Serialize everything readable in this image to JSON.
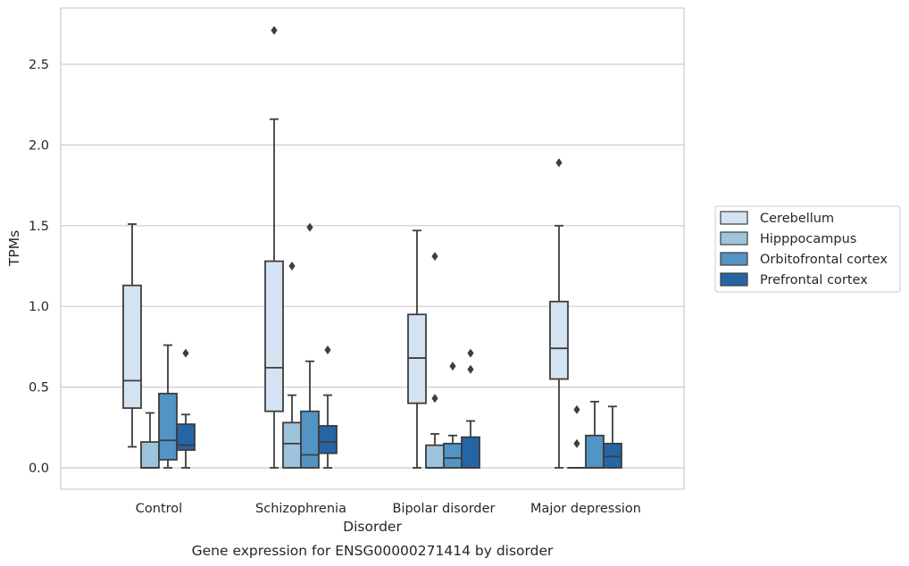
{
  "chart_data": {
    "type": "box",
    "caption": "Gene expression for ENSG00000271414 by disorder",
    "xlabel": "Disorder",
    "ylabel": "TPMs",
    "ylim": [
      -0.13,
      2.85
    ],
    "yticks": [
      0.0,
      0.5,
      1.0,
      1.5,
      2.0,
      2.5
    ],
    "ytick_labels": [
      "0.0",
      "0.5",
      "1.0",
      "1.5",
      "2.0",
      "2.5"
    ],
    "grid": "horizontal",
    "legend_position": "right",
    "categories": [
      "Control",
      "Schizophrenia",
      "Bipolar disorder",
      "Major depression"
    ],
    "series": [
      {
        "name": "Cerebellum",
        "color": "#d4e3f2",
        "boxes": [
          {
            "whisker_low": 0.13,
            "q1": 0.37,
            "median": 0.54,
            "q3": 1.13,
            "whisker_high": 1.51,
            "outliers": []
          },
          {
            "whisker_low": 0.0,
            "q1": 0.35,
            "median": 0.62,
            "q3": 1.28,
            "whisker_high": 2.16,
            "outliers": [
              2.71
            ]
          },
          {
            "whisker_low": 0.0,
            "q1": 0.4,
            "median": 0.68,
            "q3": 0.95,
            "whisker_high": 1.47,
            "outliers": []
          },
          {
            "whisker_low": 0.0,
            "q1": 0.55,
            "median": 0.74,
            "q3": 1.03,
            "whisker_high": 1.5,
            "outliers": [
              1.89
            ]
          }
        ]
      },
      {
        "name": "Hipppocampus",
        "color": "#9ec4dd",
        "boxes": [
          {
            "whisker_low": 0.0,
            "q1": 0.0,
            "median": 0.0,
            "q3": 0.16,
            "whisker_high": 0.34,
            "outliers": []
          },
          {
            "whisker_low": 0.0,
            "q1": 0.0,
            "median": 0.15,
            "q3": 0.28,
            "whisker_high": 0.45,
            "outliers": [
              1.25
            ]
          },
          {
            "whisker_low": 0.0,
            "q1": 0.0,
            "median": 0.0,
            "q3": 0.14,
            "whisker_high": 0.21,
            "outliers": [
              0.43,
              1.31
            ]
          },
          {
            "whisker_low": 0.0,
            "q1": 0.0,
            "median": 0.0,
            "q3": 0.0,
            "whisker_high": 0.0,
            "outliers": [
              0.15,
              0.36
            ]
          }
        ]
      },
      {
        "name": "Orbitofrontal cortex",
        "color": "#5294c3",
        "boxes": [
          {
            "whisker_low": 0.0,
            "q1": 0.05,
            "median": 0.17,
            "q3": 0.46,
            "whisker_high": 0.76,
            "outliers": []
          },
          {
            "whisker_low": 0.0,
            "q1": 0.0,
            "median": 0.08,
            "q3": 0.35,
            "whisker_high": 0.66,
            "outliers": [
              1.49
            ]
          },
          {
            "whisker_low": 0.0,
            "q1": 0.0,
            "median": 0.06,
            "q3": 0.15,
            "whisker_high": 0.2,
            "outliers": [
              0.63
            ]
          },
          {
            "whisker_low": 0.0,
            "q1": 0.0,
            "median": 0.0,
            "q3": 0.2,
            "whisker_high": 0.41,
            "outliers": []
          }
        ]
      },
      {
        "name": "Prefrontal cortex",
        "color": "#2565a6",
        "boxes": [
          {
            "whisker_low": 0.0,
            "q1": 0.11,
            "median": 0.14,
            "q3": 0.27,
            "whisker_high": 0.33,
            "outliers": [
              0.71
            ]
          },
          {
            "whisker_low": 0.0,
            "q1": 0.09,
            "median": 0.16,
            "q3": 0.26,
            "whisker_high": 0.45,
            "outliers": [
              0.73
            ]
          },
          {
            "whisker_low": 0.0,
            "q1": 0.0,
            "median": 0.0,
            "q3": 0.19,
            "whisker_high": 0.29,
            "outliers": [
              0.61,
              0.71
            ]
          },
          {
            "whisker_low": 0.0,
            "q1": 0.0,
            "median": 0.07,
            "q3": 0.15,
            "whisker_high": 0.38,
            "outliers": []
          }
        ]
      }
    ]
  }
}
